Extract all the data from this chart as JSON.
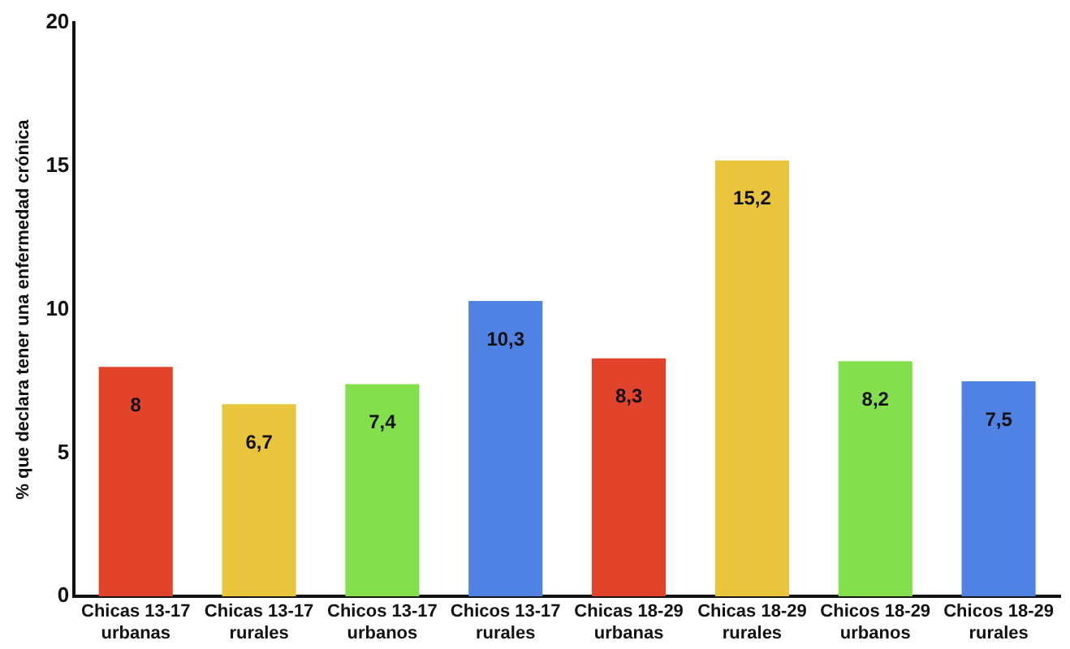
{
  "chart_data": {
    "type": "bar",
    "ylabel": "% que declara tener una enfermedad crónica",
    "categories": [
      "Chicas 13-17 urbanas",
      "Chicas 13-17 rurales",
      "Chicos 13-17 urbanos",
      "Chicos 13-17 rurales",
      "Chicas 18-29 urbanas",
      "Chicas 18-29 rurales",
      "Chicos 18-29 urbanos",
      "Chicos 18-29 rurales"
    ],
    "values": [
      8,
      6.7,
      7.4,
      10.3,
      8.3,
      15.2,
      8.2,
      7.5
    ],
    "value_labels": [
      "8",
      "6,7",
      "7,4",
      "10,3",
      "8,3",
      "15,2",
      "8,2",
      "7,5"
    ],
    "colors": [
      "#e2432b",
      "#e8c53c",
      "#83e04c",
      "#4f82e2",
      "#e2432b",
      "#e8c53c",
      "#83e04c",
      "#4f82e2"
    ],
    "ylim": [
      0,
      20
    ],
    "yticks": [
      0,
      5,
      10,
      15,
      20
    ],
    "grid": false,
    "legend": false
  }
}
